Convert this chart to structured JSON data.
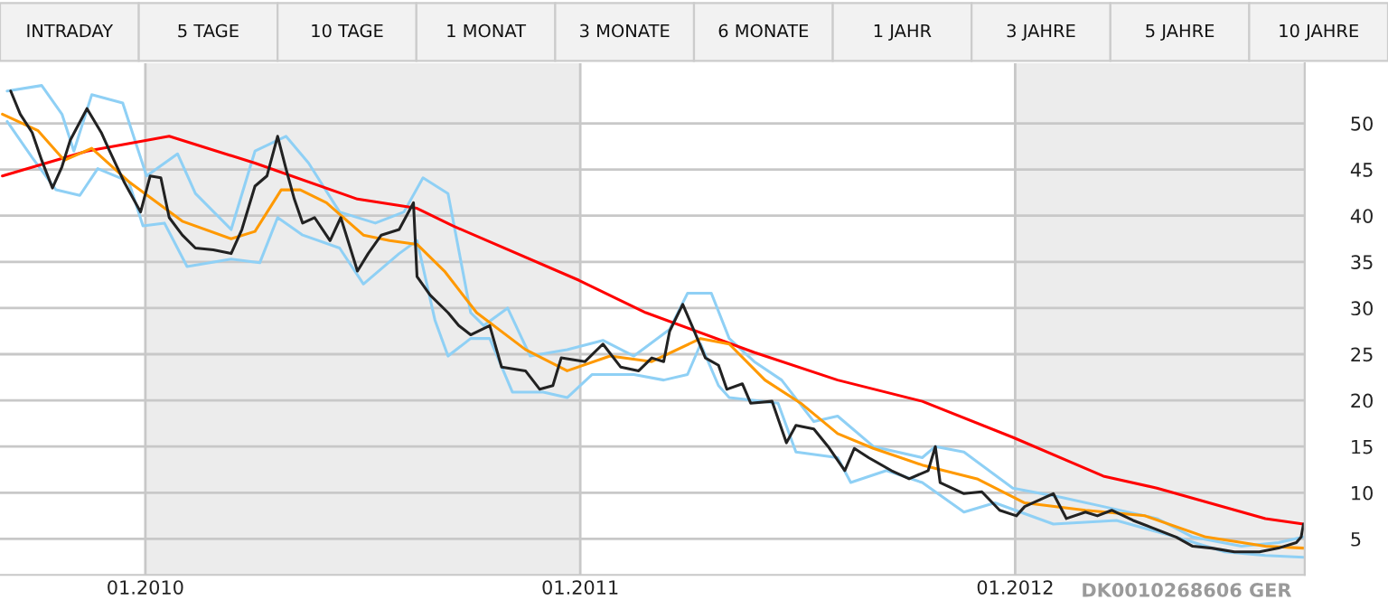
{
  "chart_data": {
    "type": "line",
    "annotations": [
      "INTRADAY",
      "5 TAGE",
      "10 TAGE",
      "1 MONAT",
      "3 MONATE",
      "6 MONATE",
      "1 JAHR",
      "3 JAHRE",
      "5 JAHRE",
      "10 JAHRE",
      "DK0010268606 GER"
    ],
    "xlim": [
      "2009-09-01",
      "2012-08-31"
    ],
    "xticks": [
      {
        "value": "2010-01-01",
        "label": "01.2010"
      },
      {
        "value": "2011-01-01",
        "label": "01.2011"
      },
      {
        "value": "2012-01-01",
        "label": "01.2012"
      }
    ],
    "ylim": [
      1.1,
      56.5
    ],
    "yticks": [
      5,
      10,
      15,
      20,
      25,
      30,
      35,
      40,
      45,
      50
    ],
    "grid": true,
    "bands": [
      {
        "axis": "x",
        "from": "2010-01-01",
        "to": "2011-01-01",
        "color": "#ececec"
      },
      {
        "axis": "x",
        "from": "2012-01-01",
        "to": "2012-08-31",
        "color": "#ececec"
      }
    ],
    "series": [
      {
        "color": "#8fd0f5",
        "x": [
          "2009-09-07",
          "2009-10-06",
          "2009-10-23",
          "2009-11-02",
          "2009-11-17",
          "2009-12-13",
          "2010-01-02",
          "2010-01-28",
          "2010-02-12",
          "2010-03-14",
          "2010-04-03",
          "2010-04-29",
          "2010-05-18",
          "2010-06-13",
          "2010-07-13",
          "2010-08-06",
          "2010-08-22",
          "2010-09-12",
          "2010-10-01",
          "2010-10-12",
          "2010-11-01",
          "2010-11-20",
          "2010-12-21",
          "2011-01-20",
          "2011-02-15",
          "2011-03-17",
          "2011-04-01",
          "2011-04-21",
          "2011-05-06",
          "2011-05-27",
          "2011-06-19",
          "2011-07-16",
          "2011-08-05",
          "2011-09-04",
          "2011-10-15",
          "2011-10-26",
          "2011-11-19",
          "2011-12-30",
          "2012-02-09",
          "2012-03-15",
          "2012-04-29",
          "2012-05-29",
          "2012-07-09",
          "2012-08-09",
          "2012-08-30"
        ],
        "values": [
          53.5,
          54.1,
          51,
          47,
          53.1,
          52.2,
          44.3,
          46.7,
          42.4,
          38.5,
          47,
          48.6,
          45.7,
          40.4,
          39.2,
          40.4,
          44.1,
          42.4,
          29.5,
          28.1,
          30,
          24.8,
          25.5,
          26.5,
          24.8,
          27.7,
          31.6,
          31.6,
          26.7,
          24.2,
          22.2,
          17.7,
          18.3,
          15,
          13.8,
          15,
          14.4,
          10.5,
          9.5,
          8.5,
          7.2,
          5.2,
          4.2,
          4.6,
          5.2
        ]
      },
      {
        "color": "#8fd0f5",
        "x": [
          "2009-09-07",
          "2009-09-28",
          "2009-10-18",
          "2009-11-07",
          "2009-11-22",
          "2009-12-18",
          "2009-12-30",
          "2010-01-17",
          "2010-02-05",
          "2010-03-14",
          "2010-04-07",
          "2010-04-22",
          "2010-05-13",
          "2010-06-13",
          "2010-07-03",
          "2010-08-02",
          "2010-08-17",
          "2010-09-01",
          "2010-09-12",
          "2010-10-01",
          "2010-10-17",
          "2010-11-05",
          "2010-12-01",
          "2010-12-21",
          "2011-01-11",
          "2011-02-15",
          "2011-03-12",
          "2011-04-01",
          "2011-04-12",
          "2011-04-27",
          "2011-05-06",
          "2011-06-16",
          "2011-07-01",
          "2011-08-05",
          "2011-08-16",
          "2011-09-15",
          "2011-10-15",
          "2011-11-19",
          "2011-12-15",
          "2012-02-02",
          "2012-03-26",
          "2012-05-15",
          "2012-06-25",
          "2012-07-29",
          "2012-08-30"
        ],
        "values": [
          50.2,
          46.3,
          42.8,
          42.2,
          45.1,
          43.7,
          38.9,
          39.2,
          34.5,
          35.3,
          34.9,
          39.8,
          37.9,
          36.5,
          32.6,
          35.9,
          37.3,
          28.7,
          24.8,
          26.7,
          26.7,
          20.9,
          20.9,
          20.3,
          22.8,
          22.8,
          22.2,
          22.8,
          26.1,
          21.6,
          20.3,
          19.7,
          14.4,
          13.8,
          11.1,
          12.4,
          11.1,
          7.9,
          8.9,
          6.6,
          7,
          5.2,
          3.6,
          3.2,
          3
        ]
      },
      {
        "color": "#ff0000",
        "x": [
          "2009-09-03",
          "2009-11-13",
          "2010-01-21",
          "2010-04-03",
          "2010-06-28",
          "2010-08-17",
          "2010-09-16",
          "2010-12-31",
          "2011-02-25",
          "2011-05-27",
          "2011-08-05",
          "2011-10-15",
          "2011-12-30",
          "2012-03-15",
          "2012-04-29",
          "2012-07-29",
          "2012-08-30"
        ],
        "values": [
          44.3,
          47,
          48.6,
          45.7,
          41.8,
          40.8,
          38.9,
          33,
          29.5,
          25.2,
          22.2,
          19.9,
          16,
          11.8,
          10.5,
          7.2,
          6.6
        ]
      },
      {
        "color": "#ff9900",
        "x": [
          "2009-09-03",
          "2009-10-03",
          "2009-10-25",
          "2009-11-17",
          "2009-12-18",
          "2010-02-01",
          "2010-03-14",
          "2010-04-03",
          "2010-04-25",
          "2010-05-11",
          "2010-06-02",
          "2010-07-03",
          "2010-07-25",
          "2010-08-17",
          "2010-09-09",
          "2010-10-06",
          "2010-11-16",
          "2010-12-21",
          "2011-01-26",
          "2011-03-02",
          "2011-04-12",
          "2011-05-06",
          "2011-06-05",
          "2011-07-05",
          "2011-08-05",
          "2011-09-04",
          "2011-10-15",
          "2011-11-30",
          "2012-01-09",
          "2012-02-29",
          "2012-04-19",
          "2012-06-09",
          "2012-07-29",
          "2012-08-30"
        ],
        "values": [
          51,
          49.2,
          46,
          47.3,
          43.7,
          39.4,
          37.5,
          38.3,
          42.8,
          42.8,
          41.4,
          37.9,
          37.3,
          36.9,
          34,
          29.5,
          25.5,
          23.2,
          24.8,
          24.2,
          26.7,
          26.1,
          22.2,
          19.7,
          16.4,
          14.8,
          13,
          11.5,
          8.9,
          8.1,
          7.5,
          5.2,
          4.2,
          4
        ]
      },
      {
        "color": "#222222",
        "x": [
          "2009-09-10",
          "2009-09-18",
          "2009-09-28",
          "2009-10-06",
          "2009-10-15",
          "2009-10-23",
          "2009-10-30",
          "2009-11-13",
          "2009-11-25",
          "2009-12-02",
          "2009-12-14",
          "2009-12-28",
          "2010-01-05",
          "2010-01-14",
          "2010-01-21",
          "2010-02-01",
          "2010-02-12",
          "2010-02-27",
          "2010-03-14",
          "2010-03-23",
          "2010-04-03",
          "2010-04-13",
          "2010-04-22",
          "2010-04-29",
          "2010-05-06",
          "2010-05-13",
          "2010-05-23",
          "2010-06-05",
          "2010-06-14",
          "2010-06-28",
          "2010-07-07",
          "2010-07-18",
          "2010-08-02",
          "2010-08-14",
          "2010-08-17",
          "2010-08-28",
          "2010-09-12",
          "2010-09-21",
          "2010-10-01",
          "2010-10-17",
          "2010-10-27",
          "2010-11-16",
          "2010-11-28",
          "2010-12-09",
          "2010-12-16",
          "2011-01-05",
          "2011-01-20",
          "2011-02-04",
          "2011-02-19",
          "2011-03-02",
          "2011-03-12",
          "2011-03-17",
          "2011-03-28",
          "2011-04-06",
          "2011-04-16",
          "2011-04-27",
          "2011-05-04",
          "2011-05-17",
          "2011-05-24",
          "2011-06-11",
          "2011-06-23",
          "2011-07-01",
          "2011-07-16",
          "2011-07-28",
          "2011-08-11",
          "2011-08-19",
          "2011-08-31",
          "2011-09-19",
          "2011-10-04",
          "2011-10-20",
          "2011-10-26",
          "2011-10-30",
          "2011-11-19",
          "2011-12-04",
          "2011-12-19",
          "2012-01-02",
          "2012-01-09",
          "2012-02-02",
          "2012-02-13",
          "2012-02-29",
          "2012-03-10",
          "2012-03-22",
          "2012-04-09",
          "2012-04-25",
          "2012-05-15",
          "2012-05-29",
          "2012-06-14",
          "2012-07-03",
          "2012-07-24",
          "2012-08-09",
          "2012-08-24",
          "2012-08-28",
          "2012-08-30"
        ],
        "values": [
          53.5,
          51,
          49,
          46,
          43,
          45.3,
          48.2,
          51.6,
          49,
          47,
          43.7,
          40.4,
          44.3,
          44.1,
          39.8,
          37.9,
          36.5,
          36.3,
          35.9,
          38.5,
          43.2,
          44.3,
          48.6,
          45.1,
          41.8,
          39.2,
          39.8,
          37.3,
          39.8,
          34,
          35.9,
          37.9,
          38.5,
          41.4,
          33.4,
          31.4,
          29.5,
          28.1,
          27.1,
          28.1,
          23.6,
          23.2,
          21.2,
          21.6,
          24.6,
          24.2,
          26.1,
          23.6,
          23.2,
          24.6,
          24.2,
          27.5,
          30.4,
          27.7,
          24.6,
          23.8,
          21.2,
          21.8,
          19.7,
          19.9,
          15.4,
          17.3,
          16.9,
          15,
          12.4,
          14.8,
          13.8,
          12.4,
          11.5,
          12.4,
          15,
          11.1,
          9.9,
          10.1,
          8.1,
          7.5,
          8.5,
          9.9,
          7.2,
          7.9,
          7.5,
          8.1,
          7,
          6.2,
          5.2,
          4.2,
          4,
          3.6,
          3.6,
          4,
          4.6,
          5.2,
          6.6
        ]
      }
    ]
  }
}
